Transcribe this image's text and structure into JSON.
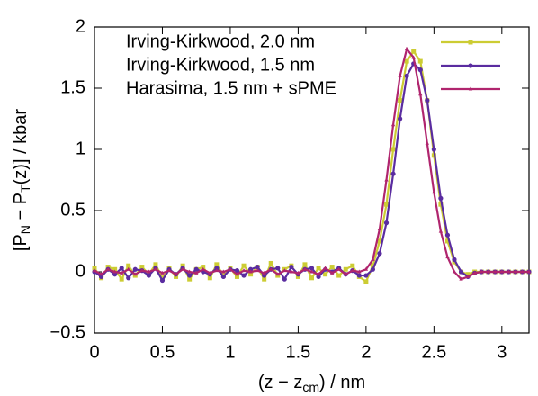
{
  "chart_data": {
    "type": "line",
    "xlabel": [
      "(z − z",
      "cm",
      ") / nm"
    ],
    "ylabel": [
      "[P",
      "N",
      " − P",
      "T",
      "(z)] / kbar"
    ],
    "xlim": [
      0,
      3.2
    ],
    "ylim": [
      -0.5,
      2
    ],
    "xticks": [
      0,
      0.5,
      1,
      1.5,
      2,
      2.5,
      3
    ],
    "yticks": [
      {
        "value": -0.5,
        "label": "−0.5"
      },
      0,
      0.5,
      1,
      1.5,
      2
    ],
    "legend": "top-left",
    "x": [
      0,
      0.05,
      0.1,
      0.15,
      0.2,
      0.25,
      0.3,
      0.35,
      0.4,
      0.45,
      0.5,
      0.55,
      0.6,
      0.65,
      0.7,
      0.75,
      0.8,
      0.85,
      0.9,
      0.95,
      1,
      1.05,
      1.1,
      1.15,
      1.2,
      1.25,
      1.3,
      1.35,
      1.4,
      1.45,
      1.5,
      1.55,
      1.6,
      1.65,
      1.7,
      1.75,
      1.8,
      1.85,
      1.9,
      1.95,
      2,
      2.05,
      2.1,
      2.15,
      2.2,
      2.25,
      2.3,
      2.35,
      2.4,
      2.45,
      2.5,
      2.55,
      2.6,
      2.65,
      2.7,
      2.75,
      2.8,
      2.85,
      2.9,
      2.95,
      3,
      3.05,
      3.1,
      3.15,
      3.2
    ],
    "series": [
      {
        "name": "Irving-Kirkwood, 2.0 nm",
        "color": "#cccc33",
        "marker": "square",
        "values": [
          0.03,
          -0.05,
          0.04,
          0.02,
          -0.06,
          0.05,
          -0.03,
          0.04,
          -0.02,
          0.06,
          -0.05,
          0.03,
          -0.04,
          0.05,
          -0.06,
          0.02,
          0.04,
          -0.05,
          0.06,
          -0.03,
          0.03,
          -0.04,
          0.05,
          -0.02,
          0.04,
          -0.06,
          0.07,
          -0.03,
          0.02,
          0.05,
          -0.04,
          0.06,
          -0.05,
          0.03,
          -0.02,
          0.04,
          -0.03,
          0.02,
          0.05,
          -0.04,
          -0.08,
          0.05,
          0.25,
          0.55,
          1.0,
          1.4,
          1.72,
          1.8,
          1.72,
          1.4,
          0.95,
          0.55,
          0.25,
          0.08,
          0.0,
          -0.02,
          0,
          0,
          0,
          0,
          0,
          0,
          0,
          0,
          0
        ]
      },
      {
        "name": "Irving-Kirkwood, 1.5 nm",
        "color": "#5a2ca0",
        "marker": "circle",
        "values": [
          0.0,
          -0.04,
          0.02,
          -0.02,
          0.03,
          -0.05,
          0.02,
          0.01,
          -0.03,
          0.03,
          -0.07,
          0.02,
          -0.02,
          0.03,
          -0.03,
          0.02,
          0.0,
          -0.02,
          0.03,
          -0.04,
          0.02,
          0.01,
          -0.03,
          0.02,
          0.04,
          -0.03,
          0.02,
          0.03,
          -0.06,
          0.04,
          -0.02,
          0.02,
          0.03,
          -0.04,
          0.02,
          0.0,
          0.03,
          -0.02,
          0.01,
          -0.03,
          -0.03,
          0.02,
          0.15,
          0.4,
          0.8,
          1.25,
          1.6,
          1.7,
          1.65,
          1.4,
          1.0,
          0.6,
          0.3,
          0.1,
          0.0,
          -0.04,
          -0.01,
          0,
          0,
          0,
          0,
          0,
          0,
          0,
          0
        ]
      },
      {
        "name": "Harasima, 1.5 nm + sPME",
        "color": "#b0256e",
        "marker": "triangle",
        "values": [
          0.01,
          -0.02,
          0.02,
          0.0,
          -0.01,
          0.02,
          -0.02,
          0.01,
          0.0,
          0.02,
          -0.01,
          0.01,
          -0.02,
          0.02,
          0.0,
          -0.01,
          0.02,
          -0.01,
          0.01,
          0.0,
          0.02,
          -0.02,
          0.01,
          0.0,
          0.01,
          -0.01,
          0.02,
          -0.02,
          0.01,
          0.0,
          -0.01,
          0.02,
          0.0,
          -0.02,
          0.03,
          -0.01,
          0.02,
          -0.02,
          0.01,
          0.0,
          0.02,
          0.1,
          0.35,
          0.75,
          1.2,
          1.6,
          1.82,
          1.75,
          1.45,
          1.05,
          0.65,
          0.33,
          0.12,
          0.0,
          -0.06,
          -0.04,
          -0.01,
          0,
          0,
          0,
          0,
          0,
          0,
          0,
          0
        ]
      }
    ]
  }
}
